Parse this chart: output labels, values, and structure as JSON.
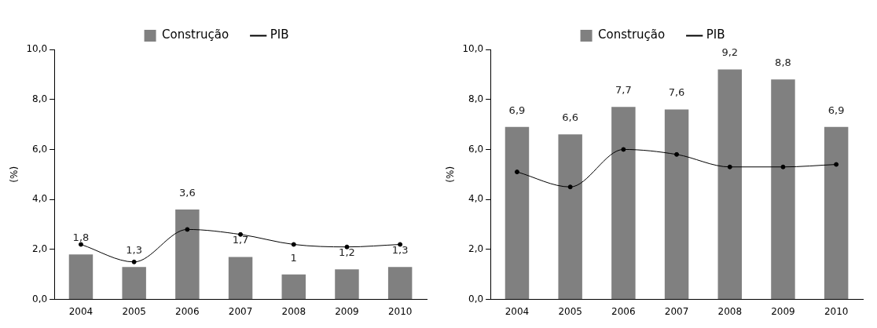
{
  "chart_data": [
    {
      "type": "bar",
      "categories": [
        "2004",
        "2005",
        "2006",
        "2007",
        "2008",
        "2009",
        "2010"
      ],
      "ylabel": "(%)",
      "ylim": [
        0,
        10
      ],
      "yticks": [
        {
          "value": 0,
          "label": "0,0"
        },
        {
          "value": 2,
          "label": "2,0"
        },
        {
          "value": 4,
          "label": "4,0"
        },
        {
          "value": 6,
          "label": "6,0"
        },
        {
          "value": 8,
          "label": "8,0"
        },
        {
          "value": 10,
          "label": "10,0"
        }
      ],
      "grid": false,
      "legend": "top",
      "series": [
        {
          "name": "Construção",
          "color": "#808080",
          "values": [
            1.8,
            1.3,
            3.6,
            1.7,
            1.0,
            1.2,
            1.3
          ],
          "value_labels": [
            "1,8",
            "1,3",
            "3,6",
            "1,7",
            "1",
            "1,2",
            "1,3"
          ]
        },
        {
          "name": "PIB",
          "type": "line",
          "color": "#000000",
          "marker": "circle",
          "line_style": "solid",
          "values": [
            2.2,
            1.5,
            2.8,
            2.6,
            2.2,
            2.1,
            2.2
          ]
        }
      ]
    },
    {
      "type": "bar",
      "categories": [
        "2004",
        "2005",
        "2006",
        "2007",
        "2008",
        "2009",
        "2010"
      ],
      "ylabel": "(%)",
      "ylim": [
        0,
        10
      ],
      "yticks": [
        {
          "value": 0,
          "label": "0,0"
        },
        {
          "value": 2,
          "label": "2,0"
        },
        {
          "value": 4,
          "label": "4,0"
        },
        {
          "value": 6,
          "label": "6,0"
        },
        {
          "value": 8,
          "label": "8,0"
        },
        {
          "value": 10,
          "label": "10,0"
        }
      ],
      "grid": false,
      "legend": "top",
      "series": [
        {
          "name": "Construção",
          "color": "#808080",
          "values": [
            6.9,
            6.6,
            7.7,
            7.6,
            9.2,
            8.8,
            6.9
          ],
          "value_labels": [
            "6,9",
            "6,6",
            "7,7",
            "7,6",
            "9,2",
            "8,8",
            "6,9"
          ]
        },
        {
          "name": "PIB",
          "type": "line",
          "color": "#000000",
          "marker": "circle",
          "line_style": "solid",
          "values": [
            5.1,
            4.5,
            6.0,
            5.8,
            5.3,
            5.3,
            5.4
          ]
        }
      ]
    }
  ]
}
